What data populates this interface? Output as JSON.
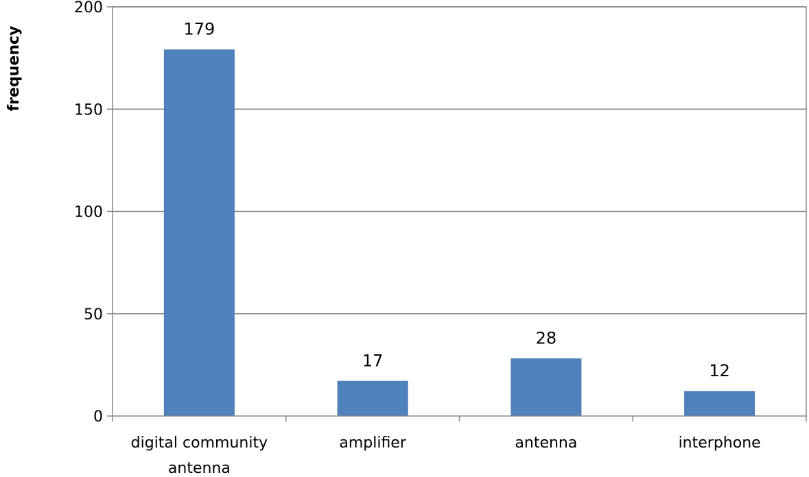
{
  "chart_data": {
    "type": "bar",
    "title": "",
    "xlabel": "",
    "ylabel": "frequency",
    "categories": [
      [
        "digital community",
        "antenna"
      ],
      [
        "amplifier"
      ],
      [
        "antenna"
      ],
      [
        "interphone"
      ]
    ],
    "values": [
      179,
      17,
      28,
      12
    ],
    "ylim": [
      0,
      200
    ],
    "yticks": [
      0,
      50,
      100,
      150,
      200
    ],
    "grid": true,
    "legend": "none",
    "bar_color": "#4f81bd",
    "bar_border_color": "#4a7ab5",
    "grid_color": "#868686"
  }
}
